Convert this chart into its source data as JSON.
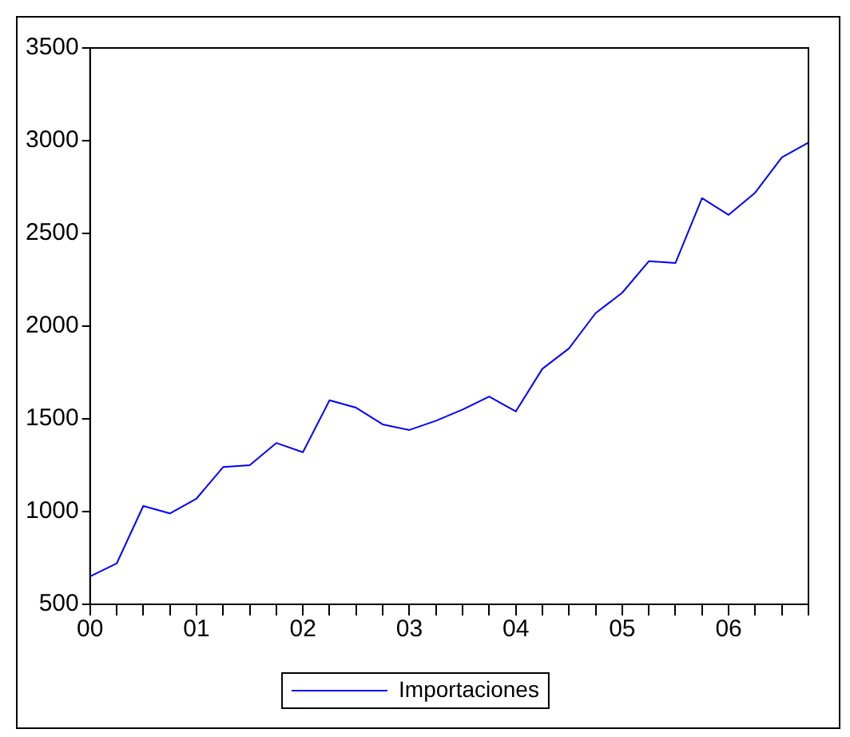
{
  "chart_data": {
    "type": "line",
    "categories": [
      "00",
      null,
      null,
      null,
      "01",
      null,
      null,
      null,
      "02",
      null,
      null,
      null,
      "03",
      null,
      null,
      null,
      "04",
      null,
      null,
      null,
      "05",
      null,
      null,
      null,
      "06",
      null,
      null,
      null
    ],
    "series": [
      {
        "name": "Importaciones",
        "color": "#0000ff",
        "values": [
          650,
          720,
          1030,
          990,
          1070,
          1240,
          1250,
          1370,
          1320,
          1600,
          1560,
          1470,
          1440,
          1490,
          1550,
          1620,
          1540,
          1770,
          1880,
          2070,
          2180,
          2350,
          2340,
          2690,
          2600,
          2720,
          2910,
          2990
        ]
      }
    ],
    "ylim": [
      500,
      3500
    ],
    "yticks": [
      500,
      1000,
      1500,
      2000,
      2500,
      3000,
      3500
    ],
    "grid": false,
    "legend": "bottom",
    "marker": "none",
    "line_style": "solid"
  }
}
